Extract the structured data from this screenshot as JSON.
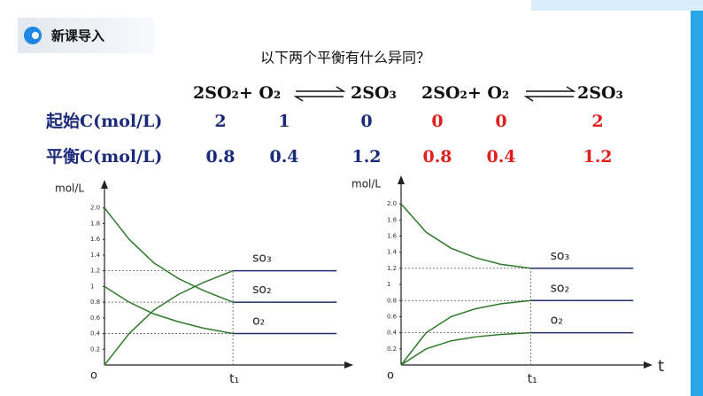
{
  "header": {
    "title": "新课导入"
  },
  "question": "以下两个平衡有什么异同？",
  "equations": [
    {
      "reactants": "2SO₂+ O₂",
      "products": "2SO₃"
    },
    {
      "reactants": "2SO₂+ O₂",
      "products": "2SO₃"
    }
  ],
  "table": {
    "rows": [
      {
        "label": "起始C(mol/L)",
        "values": [
          2,
          1,
          0,
          0,
          0,
          2
        ]
      },
      {
        "label": "平衡C(mol/L)",
        "values": [
          0.8,
          0.4,
          1.2,
          0.8,
          0.4,
          1.2
        ]
      }
    ]
  },
  "chart_data": [
    {
      "type": "line",
      "ylabel": "mol/L",
      "origin_label": "o",
      "x": [
        0,
        1,
        2,
        3,
        4,
        5.2,
        9.4
      ],
      "xlim": [
        0,
        10
      ],
      "xticks": [
        {
          "value": 5.2,
          "label": "t₁"
        }
      ],
      "ylim": [
        0,
        2.2
      ],
      "yticks": [
        0.2,
        0.4,
        0.6,
        0.8,
        1,
        1.2,
        1.4,
        1.6,
        1.8,
        {
          "value": 2,
          "label": "2.0"
        }
      ],
      "equilibrium_color": "#1f2d6b",
      "series": [
        {
          "name": "so₃",
          "color": "#2f7a2a",
          "values": [
            0,
            0.4,
            0.7,
            0.9,
            1.05,
            1.2,
            1.2
          ]
        },
        {
          "name": "so₂",
          "color": "#2f7a2a",
          "values": [
            2,
            1.6,
            1.3,
            1.1,
            0.95,
            0.8,
            0.8
          ]
        },
        {
          "name": "o₂",
          "color": "#2f7a2a",
          "values": [
            1,
            0.8,
            0.65,
            0.55,
            0.47,
            0.4,
            0.4
          ]
        }
      ]
    },
    {
      "type": "line",
      "ylabel": "mol/L",
      "origin_label": "o",
      "xlabel": "t",
      "x": [
        0,
        1,
        2,
        3,
        4,
        5.2,
        9.3
      ],
      "xlim": [
        0,
        10
      ],
      "xticks": [
        {
          "value": 5.2,
          "label": "t₁"
        }
      ],
      "ylim": [
        0,
        2.2
      ],
      "yticks": [
        0.2,
        0.4,
        0.6,
        0.8,
        1,
        1.2,
        1.4,
        1.6,
        1.8,
        {
          "value": 2,
          "label": "2.0"
        }
      ],
      "equilibrium_color": "#1f2d6b",
      "series": [
        {
          "name": "so₃",
          "color": "#2f7a2a",
          "values": [
            2,
            1.65,
            1.45,
            1.33,
            1.25,
            1.2,
            1.2
          ]
        },
        {
          "name": "so₂",
          "color": "#2f7a2a",
          "values": [
            0,
            0.4,
            0.6,
            0.7,
            0.76,
            0.8,
            0.8
          ]
        },
        {
          "name": "o₂",
          "color": "#2f7a2a",
          "values": [
            0,
            0.2,
            0.3,
            0.35,
            0.38,
            0.4,
            0.4
          ]
        }
      ]
    }
  ]
}
